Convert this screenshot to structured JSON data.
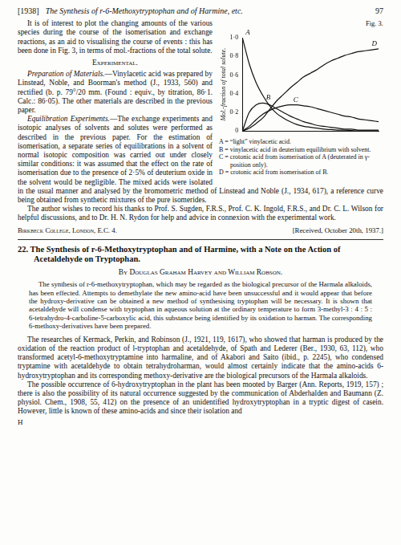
{
  "document": {
    "header": {
      "year": "[1938]",
      "title": "The Synthesis of r-6-Methoxytryptophan and of Harmine, etc.",
      "page": "97"
    },
    "intro": "It is of interest to plot the changing amounts of the various species during the course of the isomerisation and exchange reactions, as an aid to visualising the course of events : this has been done in Fig. 3, in terms of mol.-fractions of the total solute.",
    "figure": {
      "caption": "Fig. 3.",
      "key": [
        "A = “light” vinylacetic acid.",
        "B = vinylacetic acid in deuterium equilibrium with solvent.",
        "C = crotonic acid from isomerisation of A (deuterated in γ-position only).",
        "D = crotonic acid from isomerisation of B."
      ]
    },
    "section_heading": "Experimental.",
    "paragraphs": [
      {
        "lead": "Preparation of Materials.",
        "text": "—Vinylacetic acid was prepared by Linstead, Noble, and Boorman's method (J., 1933, 560) and rectified (b. p. 79°/20 mm. (Found : equiv., by titration, 86·1. Calc.: 86·05). The other materials are described in the previous paper."
      },
      {
        "lead": "Equilibration Experiments.",
        "text": "—The exchange experiments and isotopic analyses of solvents and solutes were performed as described in the previous paper. For the estimation of isomerisation, a separate series of equilibrations in a solvent of normal isotopic composition was carried out under closely similar conditions: it was assumed that the effect on the rate of isomerisation due to the presence of 2·5% of deuterium oxide in the solvent would be negligible. The mixed acids were isolated in the usual manner and analysed by the bromometric method of Linstead and Noble (J., 1934, 617), a reference curve being obtained from synthetic mixtures of the pure isomerides."
      }
    ],
    "acknowledgement": "The author wishes to record his thanks to Prof. S. Sugden, F.R.S., Prof. C. K. Ingold, F.R.S., and Dr. C. L. Wilson for helpful discussions, and to Dr. H. N. Rydon for help and advice in connexion with the experimental work.",
    "address": "Birkbeck College, London, E.C. 4.",
    "received": "[Received, October 20th, 1937.]",
    "article": {
      "number": "22.",
      "title": "The Synthesis of r-6-Methoxytryptophan and of Harmine, with a Note on the Action of Acetaldehyde on Tryptophan.",
      "authors": "By Douglas Graham Harvey and William Robson.",
      "abstract": "The synthesis of r-6-methoxytryptophan, which may be regarded as the biological precursor of the Harmala alkaloids, has been effected. Attempts to demethylate the new amino-acid have been unsuccessful and it would appear that before the hydroxy-derivative can be obtained a new method of synthesising tryptophan will be necessary. It is shown that acetaldehyde will condense with tryptophan in aqueous solution at the ordinary temperature to form 3-methyl-3 : 4 : 5 : 6-tetrahydro-4-carboline-5-carboxylic acid, this substance being identified by its oxidation to harman. The corresponding 6-methoxy-derivatives have been prepared.",
      "body": [
        "The researches of Kermack, Perkin, and Robinson (J., 1921, 119, 1617), who showed that harman is produced by the oxidation of the reaction product of l-tryptophan and acetaldehyde, of Spath and Lederer (Ber., 1930, 63, 112), who transformed acetyl-6-methoxytryptamine into harmaline, and of Akabori and Saito (ibid., p. 2245), who condensed tryptamine with acetaldehyde to obtain tetrahydroharman, would almost certainly indicate that the amino-acids 6-hydroxytryptophan and its corresponding methoxy-derivative are the biological precursors of the Harmala alkaloids.",
        "The possible occurrence of 6-hydroxytryptophan in the plant has been mooted by Barger (Ann. Reports, 1919, 157) ; there is also the possibility of its natural occurrence suggested by the communication of Abderhalden and Baumann (Z. physiol. Chem., 1908, 55, 412) on the presence of an unidentified hydroxytryptophan in a tryptic digest of casein. However, little is known of these amino-acids and since their isolation and"
      ]
    },
    "footer": "H"
  },
  "chart_data": {
    "type": "line",
    "y_label": "Mol.-fraction of total solute.",
    "x": [
      0,
      0.5,
      1,
      1.5,
      2,
      2.5,
      3,
      3.5,
      4,
      4.5,
      5,
      5.5,
      6,
      6.5,
      7,
      7.5,
      8,
      8.5,
      9,
      9.5,
      10
    ],
    "xlim": [
      0,
      10
    ],
    "ylim": [
      0,
      1
    ],
    "yticks": [
      0,
      {
        "value": 0.2,
        "label": "0·2"
      },
      {
        "value": 0.4,
        "label": "0·4"
      },
      {
        "value": 0.6,
        "label": "0·6"
      },
      {
        "value": 0.8,
        "label": "0·8"
      },
      {
        "value": 1,
        "label": "1·0"
      }
    ],
    "grid": false,
    "tick_labels": "y",
    "series": [
      {
        "name": "A",
        "color": "#111111",
        "marker": "none",
        "line_style": "solid",
        "values": [
          1.0,
          0.72,
          0.52,
          0.38,
          0.27,
          0.19,
          0.14,
          0.1,
          0.07,
          0.05,
          0.04,
          0.03,
          0.02,
          0.015,
          0.01,
          0.01,
          0.005,
          0,
          0,
          0,
          0
        ]
      },
      {
        "name": "B",
        "color": "#111111",
        "marker": "none",
        "line_style": "solid",
        "values": [
          0,
          0.2,
          0.28,
          0.3,
          0.28,
          0.24,
          0.2,
          0.16,
          0.13,
          0.1,
          0.08,
          0.06,
          0.05,
          0.04,
          0.03,
          0.02,
          0.02,
          0.01,
          0.01,
          0.01,
          0.01
        ]
      },
      {
        "name": "C",
        "color": "#111111",
        "marker": "none",
        "line_style": "solid",
        "values": [
          0,
          0.05,
          0.12,
          0.18,
          0.22,
          0.25,
          0.27,
          0.28,
          0.28,
          0.27,
          0.26,
          0.24,
          0.22,
          0.2,
          0.18,
          0.16,
          0.15,
          0.13,
          0.12,
          0.11,
          0.1
        ]
      },
      {
        "name": "D",
        "color": "#111111",
        "marker": "none",
        "line_style": "solid",
        "values": [
          0,
          0.03,
          0.08,
          0.14,
          0.23,
          0.32,
          0.39,
          0.46,
          0.52,
          0.58,
          0.62,
          0.66,
          0.71,
          0.75,
          0.78,
          0.81,
          0.83,
          0.85,
          0.86,
          0.87,
          0.88
        ]
      }
    ]
  }
}
